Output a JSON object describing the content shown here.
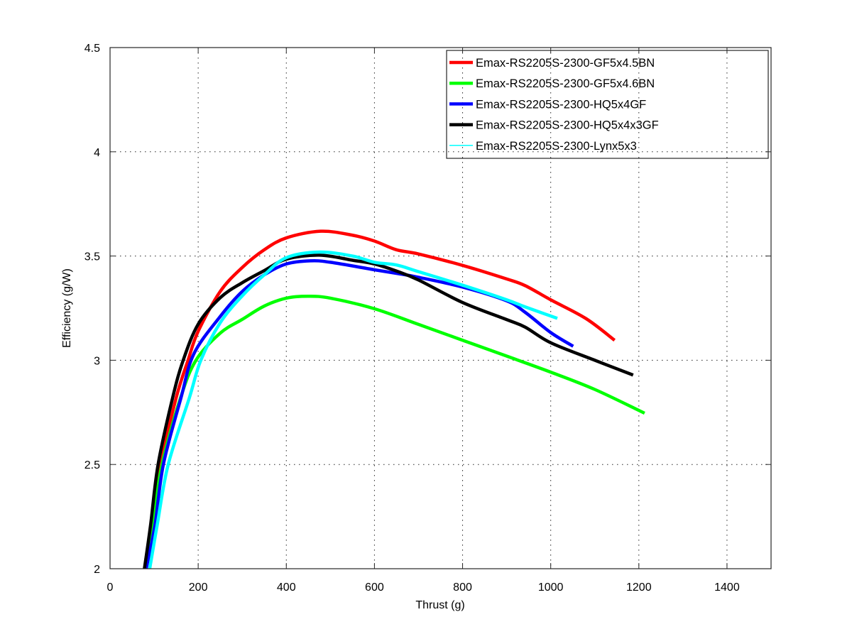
{
  "chart_data": {
    "type": "line",
    "title": "",
    "xlabel": "Thrust (g)",
    "ylabel": "Efficiency (g/W)",
    "xlim": [
      0,
      1500
    ],
    "ylim": [
      2,
      4.5
    ],
    "grid": true,
    "legend_position": "top-right",
    "x_ticks": [
      0,
      200,
      400,
      600,
      800,
      1000,
      1200,
      1400
    ],
    "x_tick_labels": [
      "0",
      "200",
      "400",
      "600",
      "800",
      "1000",
      "1200",
      "1400"
    ],
    "y_ticks": [
      2,
      2.5,
      3,
      3.5,
      4,
      4.5
    ],
    "y_tick_labels": [
      "2",
      "2.5",
      "3",
      "3.5",
      "4",
      "4.5"
    ],
    "series": [
      {
        "name": "Emax-RS2205S-2300-GF5x4.5BN",
        "color": "#ff0000",
        "legend_line": "thick",
        "x": [
          80,
          92,
          115,
          150,
          177,
          200,
          250,
          300,
          350,
          400,
          478,
          550,
          600,
          650,
          700,
          800,
          900,
          942,
          1000,
          1080,
          1145
        ],
        "y": [
          2.0,
          2.2,
          2.5,
          2.82,
          3.0,
          3.139,
          3.33,
          3.445,
          3.53,
          3.587,
          3.619,
          3.6,
          3.572,
          3.53,
          3.51,
          3.455,
          3.39,
          3.358,
          3.29,
          3.2,
          3.096
        ]
      },
      {
        "name": "Emax-RS2205S-2300-GF5x4.6BN",
        "color": "#00ff00",
        "legend_line": "thick",
        "x": [
          82,
          95,
          118,
          160,
          195,
          250,
          300,
          350,
          400,
          449,
          500,
          600,
          700,
          800,
          900,
          1000,
          1100,
          1213
        ],
        "y": [
          2.0,
          2.2,
          2.5,
          2.82,
          3.0,
          3.13,
          3.196,
          3.26,
          3.298,
          3.307,
          3.298,
          3.247,
          3.172,
          3.096,
          3.02,
          2.943,
          2.86,
          2.746
        ]
      },
      {
        "name": "Emax-RS2205S-2300-HQ5x4GF",
        "color": "#0000ff",
        "legend_line": "thick",
        "x": [
          82,
          102,
          121,
          161,
          190,
          250,
          300,
          350,
          400,
          454,
          500,
          600,
          650,
          700,
          800,
          900,
          942,
          1000,
          1051
        ],
        "y": [
          2.0,
          2.21,
          2.5,
          2.82,
          3.03,
          3.21,
          3.33,
          3.41,
          3.462,
          3.477,
          3.47,
          3.434,
          3.417,
          3.398,
          3.351,
          3.285,
          3.23,
          3.133,
          3.067
        ]
      },
      {
        "name": "Emax-RS2205S-2300-HQ5x4x3GF",
        "color": "#000000",
        "legend_line": "thick",
        "x": [
          78,
          92,
          109,
          142,
          166,
          200,
          250,
          300,
          350,
          400,
          475,
          550,
          600,
          650,
          700,
          800,
          900,
          942,
          1000,
          1100,
          1187
        ],
        "y": [
          2.0,
          2.21,
          2.5,
          2.82,
          3.0,
          3.173,
          3.3,
          3.372,
          3.43,
          3.485,
          3.504,
          3.48,
          3.462,
          3.428,
          3.385,
          3.277,
          3.195,
          3.159,
          3.084,
          3.0,
          2.929
        ]
      },
      {
        "name": "Emax-RS2205S-2300-Lynx5x3",
        "color": "#00ffff",
        "legend_line": "thin",
        "x": [
          90,
          107,
          132,
          180,
          206,
          250,
          300,
          350,
          400,
          475,
          550,
          600,
          650,
          700,
          800,
          900,
          942,
          1015
        ],
        "y": [
          2.0,
          2.21,
          2.5,
          2.82,
          3.0,
          3.18,
          3.309,
          3.41,
          3.492,
          3.519,
          3.5,
          3.47,
          3.457,
          3.425,
          3.36,
          3.29,
          3.256,
          3.201
        ]
      }
    ]
  }
}
